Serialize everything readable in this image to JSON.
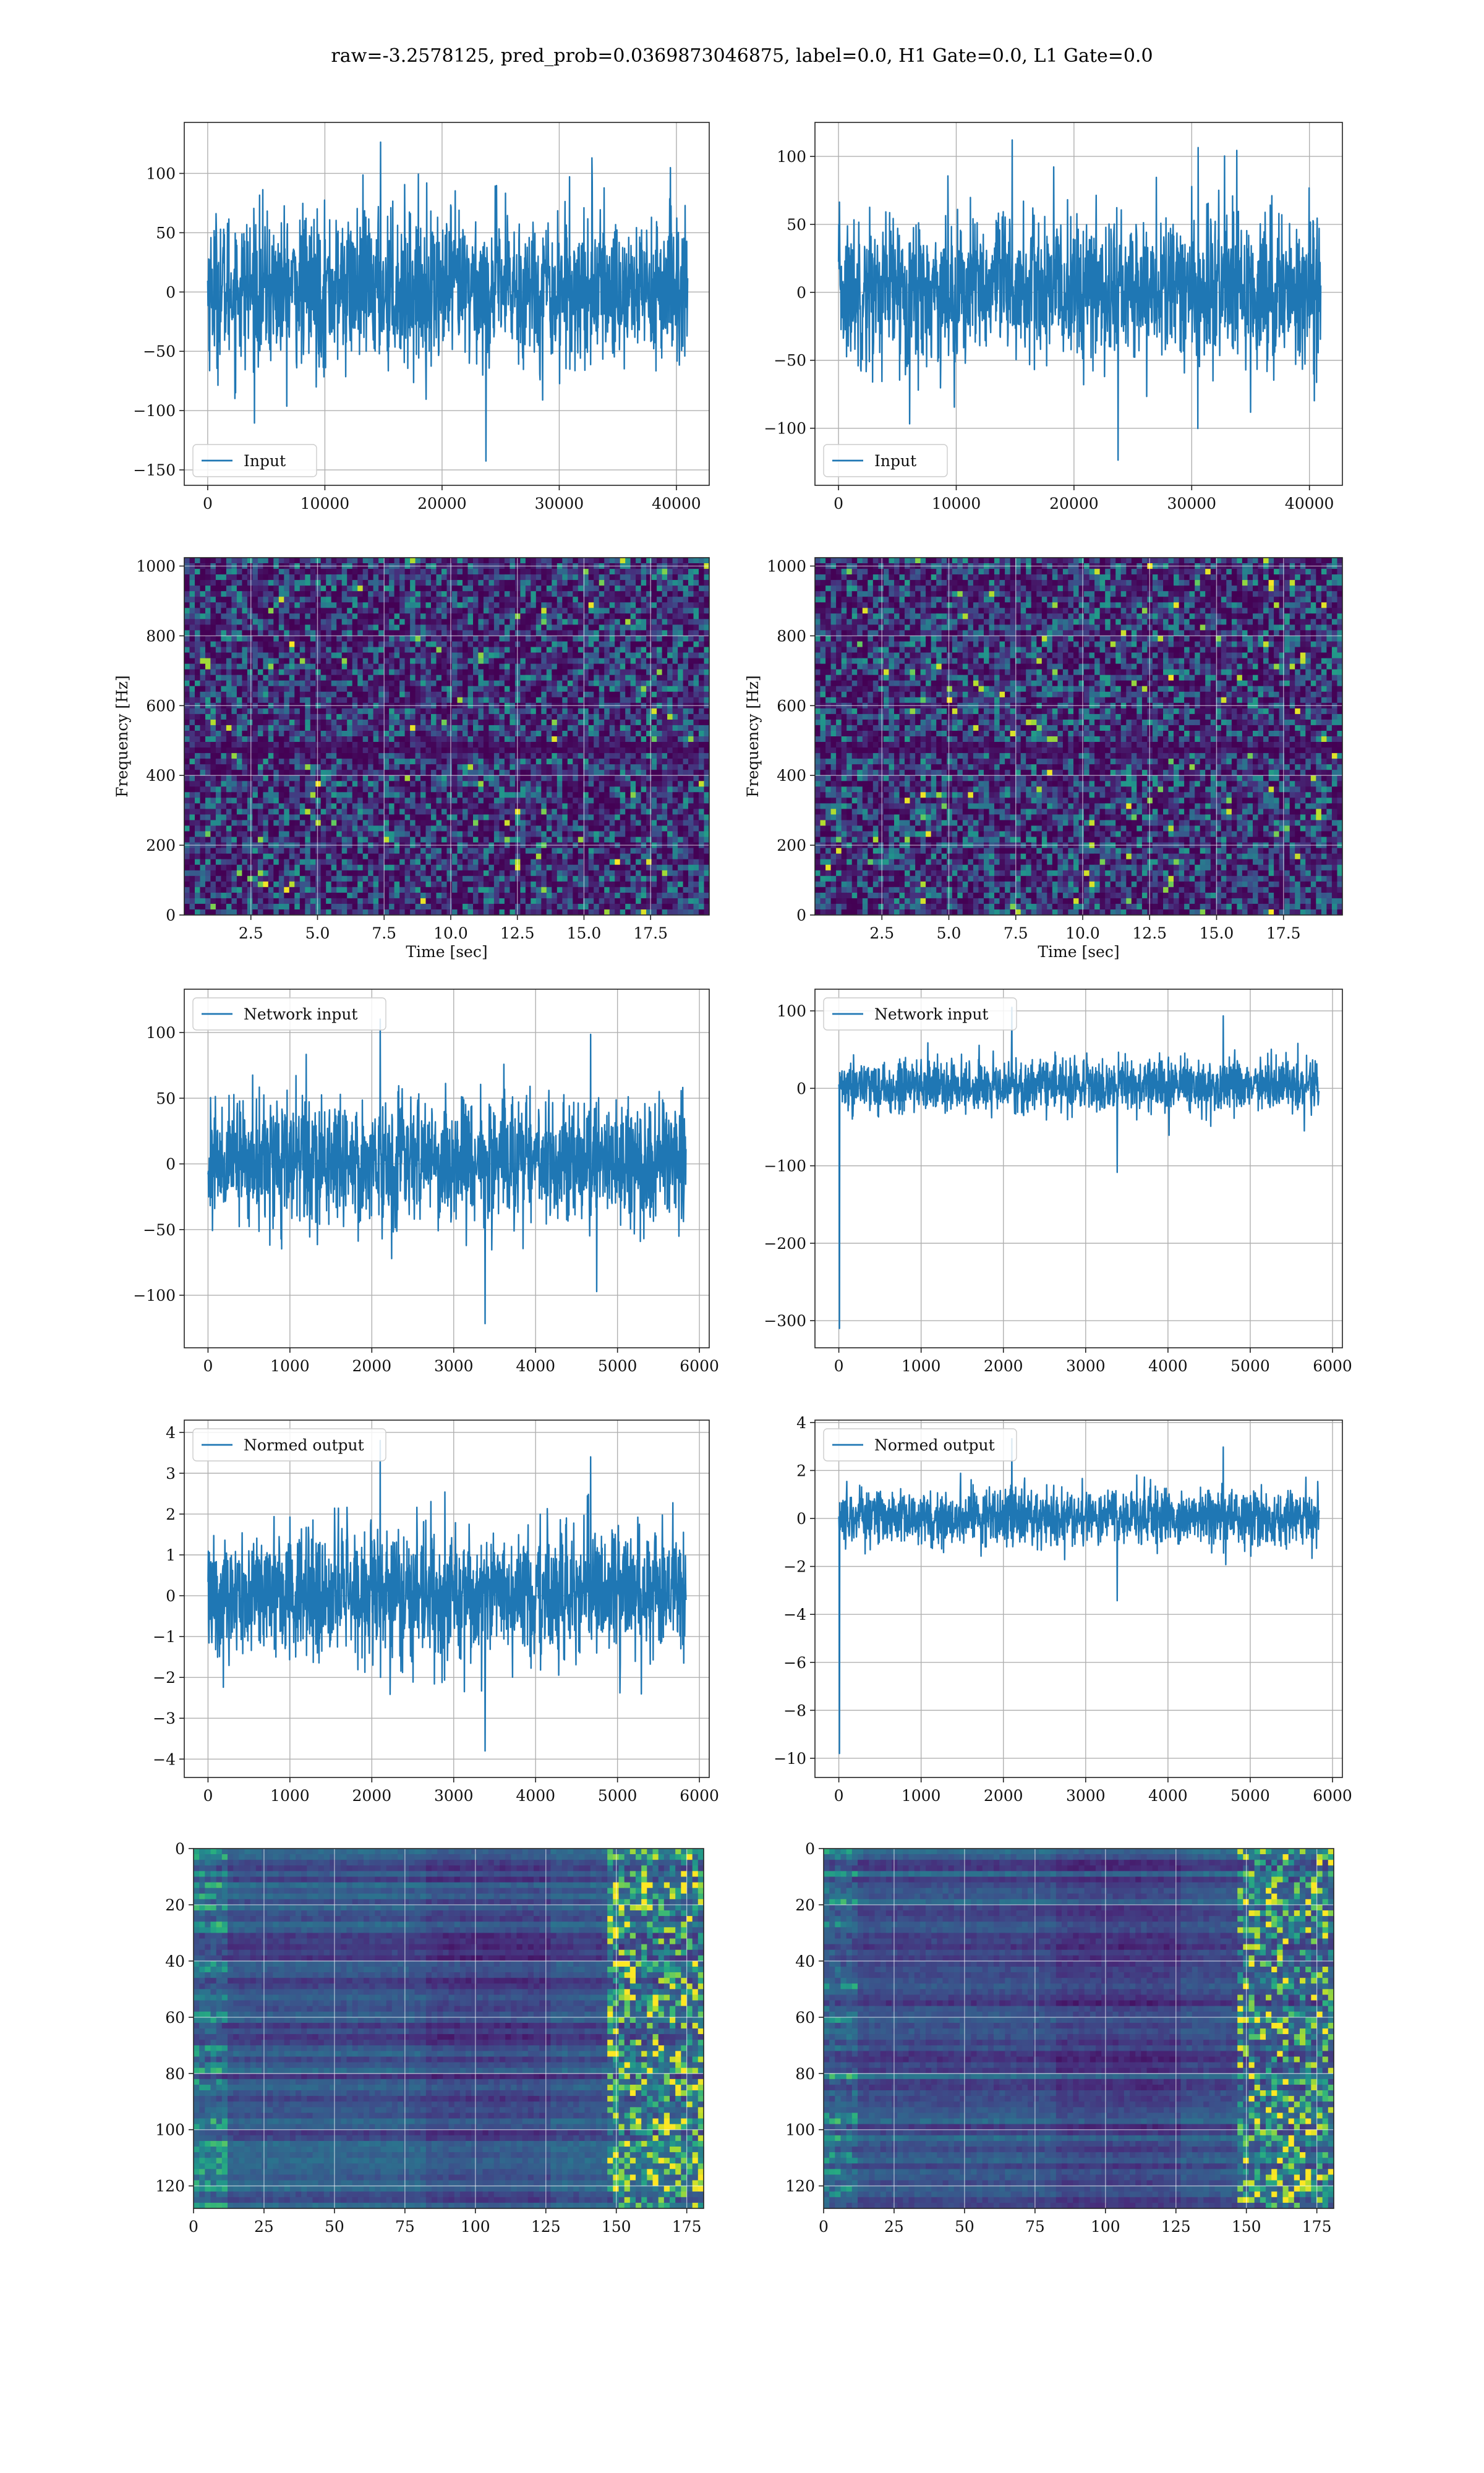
{
  "figure": {
    "suptitle": "raw=-3.2578125, pred_prob=0.0369873046875, label=0.0, H1 Gate=0.0, L1 Gate=0.0"
  },
  "colors": {
    "line": "#1f77b4",
    "grid": "#b0b0b0",
    "viridis": [
      "#440154",
      "#472d7b",
      "#3b528b",
      "#2c728e",
      "#21918c",
      "#28ae80",
      "#5ec962",
      "#addc30",
      "#fde725"
    ]
  },
  "chart_data": [
    {
      "id": "input-h1",
      "type": "line",
      "legend": "Input",
      "legend_position": "lower-left",
      "xlim": [
        -2000,
        42800
      ],
      "ylim": [
        -163,
        143
      ],
      "xticks": [
        0,
        10000,
        20000,
        30000,
        40000
      ],
      "yticks": [
        -150,
        -100,
        -50,
        0,
        50,
        100
      ],
      "series": [
        {
          "x_range": [
            0,
            40960
          ],
          "envelope": [
            -75,
            80
          ],
          "peaks": [
            -150,
            133
          ],
          "character": "stationary noise"
        }
      ]
    },
    {
      "id": "input-l1",
      "type": "line",
      "legend": "Input",
      "legend_position": "lower-left",
      "xlim": [
        -2000,
        42800
      ],
      "ylim": [
        -142,
        125
      ],
      "xticks": [
        0,
        10000,
        20000,
        30000,
        40000
      ],
      "yticks": [
        -100,
        -50,
        0,
        50,
        100
      ],
      "series": [
        {
          "x_range": [
            0,
            40960
          ],
          "envelope": [
            -65,
            68
          ],
          "peaks": [
            -130,
            118
          ],
          "character": "stationary noise"
        }
      ]
    },
    {
      "id": "spectrogram-h1",
      "type": "heatmap",
      "xlabel": "Time [sec]",
      "ylabel": "Frequency [Hz]",
      "xlim": [
        0,
        19.7
      ],
      "ylim": [
        0,
        1024
      ],
      "xticks": [
        2.5,
        5.0,
        7.5,
        10.0,
        12.5,
        15.0,
        17.5
      ],
      "yticks": [
        0,
        200,
        400,
        600,
        800,
        1000
      ],
      "colormap": "viridis",
      "dark_band_hz": 495
    },
    {
      "id": "spectrogram-l1",
      "type": "heatmap",
      "xlabel": "Time [sec]",
      "ylabel": "Frequency [Hz]",
      "xlim": [
        0,
        19.7
      ],
      "ylim": [
        0,
        1024
      ],
      "xticks": [
        2.5,
        5.0,
        7.5,
        10.0,
        12.5,
        15.0,
        17.5
      ],
      "yticks": [
        0,
        200,
        400,
        600,
        800,
        1000
      ],
      "colormap": "viridis",
      "dark_band_hz": 495
    },
    {
      "id": "network-input-h1",
      "type": "line",
      "legend": "Network input",
      "legend_position": "upper-left",
      "xlim": [
        -290,
        6120
      ],
      "ylim": [
        -140,
        133
      ],
      "xticks": [
        0,
        1000,
        2000,
        3000,
        4000,
        5000,
        6000
      ],
      "yticks": [
        -100,
        -50,
        0,
        50,
        100
      ],
      "series": [
        {
          "x_range": [
            0,
            5836
          ],
          "envelope": [
            -55,
            60
          ],
          "peaks": [
            -128,
            116
          ],
          "character": "noise"
        }
      ]
    },
    {
      "id": "network-input-l1",
      "type": "line",
      "legend": "Network input",
      "legend_position": "upper-left",
      "xlim": [
        -290,
        6120
      ],
      "ylim": [
        -335,
        128
      ],
      "xticks": [
        0,
        1000,
        2000,
        3000,
        4000,
        5000,
        6000
      ],
      "yticks": [
        -300,
        -200,
        -100,
        0,
        100
      ],
      "series": [
        {
          "x_range": [
            0,
            5836
          ],
          "envelope": [
            -40,
            45
          ],
          "peaks": [
            -310,
            110
          ],
          "character": "noise with initial spike"
        }
      ]
    },
    {
      "id": "normed-output-h1",
      "type": "line",
      "legend": "Normed output",
      "legend_position": "upper-left",
      "xlim": [
        -290,
        6120
      ],
      "ylim": [
        -4.45,
        4.3
      ],
      "xticks": [
        0,
        1000,
        2000,
        3000,
        4000,
        5000,
        6000
      ],
      "yticks": [
        -4,
        -3,
        -2,
        -1,
        0,
        1,
        2,
        3,
        4
      ],
      "series": [
        {
          "x_range": [
            0,
            5836
          ],
          "envelope": [
            -1.9,
            2.0
          ],
          "peaks": [
            -4.0,
            4.0
          ],
          "character": "noise"
        }
      ]
    },
    {
      "id": "normed-output-l1",
      "type": "line",
      "legend": "Normed output",
      "legend_position": "upper-left",
      "xlim": [
        -290,
        6120
      ],
      "ylim": [
        -10.8,
        4.1
      ],
      "xticks": [
        0,
        1000,
        2000,
        3000,
        4000,
        5000,
        6000
      ],
      "yticks": [
        -10,
        -8,
        -6,
        -4,
        -2,
        0,
        2,
        4
      ],
      "series": [
        {
          "x_range": [
            0,
            5836
          ],
          "envelope": [
            -1.4,
            1.5
          ],
          "peaks": [
            -9.8,
            3.5
          ],
          "character": "noise with initial spike"
        }
      ]
    },
    {
      "id": "feature-map-h1",
      "type": "heatmap",
      "xlim": [
        0,
        181
      ],
      "ylim": [
        128,
        0
      ],
      "xticks": [
        0,
        25,
        50,
        75,
        100,
        125,
        150,
        175
      ],
      "yticks": [
        0,
        20,
        40,
        60,
        80,
        100,
        120
      ],
      "colormap": "viridis"
    },
    {
      "id": "feature-map-l1",
      "type": "heatmap",
      "xlim": [
        0,
        181
      ],
      "ylim": [
        128,
        0
      ],
      "xticks": [
        0,
        25,
        50,
        75,
        100,
        125,
        150,
        175
      ],
      "yticks": [
        0,
        20,
        40,
        60,
        80,
        100,
        120
      ],
      "colormap": "viridis"
    }
  ]
}
